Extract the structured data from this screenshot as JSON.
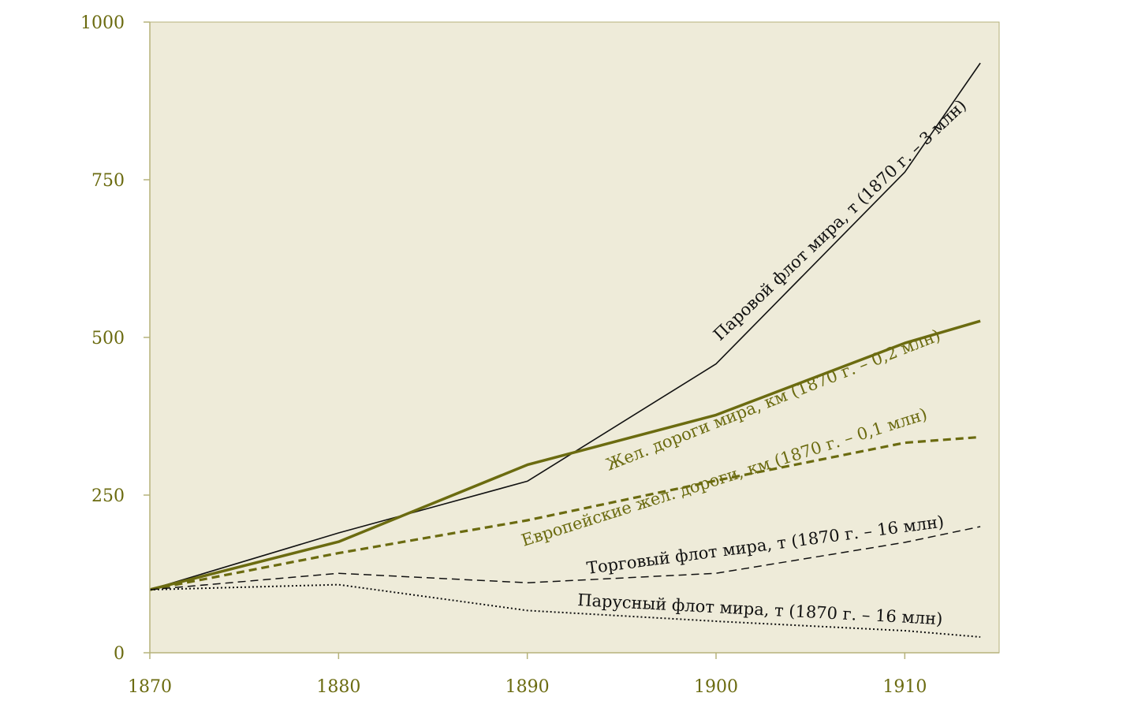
{
  "chart_data": {
    "type": "line",
    "title": "",
    "xlabel": "",
    "ylabel": "",
    "xlim": [
      1870,
      1915
    ],
    "ylim": [
      0,
      1000
    ],
    "x_ticks": [
      "1870",
      "1880",
      "1890",
      "1900",
      "1910"
    ],
    "y_ticks": [
      "0",
      "250",
      "500",
      "750",
      "1000"
    ],
    "grid": false,
    "colors": {
      "plot_bg": "#eeebd9",
      "olive": "#6b6b10",
      "black": "#111111",
      "axis": "#b5b27a"
    },
    "series": [
      {
        "name": "Паровой флот мира, т (1870 г. – 3 млн)",
        "color": "#111111",
        "style": "solid",
        "width": 1.6,
        "x": [
          1870,
          1880,
          1890,
          1900,
          1910,
          1914
        ],
        "y": [
          100,
          190,
          272,
          458,
          762,
          935
        ]
      },
      {
        "name": "Жел. дороги мира, км (1870 г. – 0,2 млн)",
        "color": "#6b6b10",
        "style": "solid",
        "width": 3.5,
        "x": [
          1870,
          1880,
          1890,
          1900,
          1910,
          1914
        ],
        "y": [
          100,
          176,
          298,
          377,
          491,
          526
        ]
      },
      {
        "name": "Европейские жел. дороги, км (1870 г. – 0,1 млн)",
        "color": "#6b6b10",
        "style": "dashed",
        "width": 3.2,
        "x": [
          1870,
          1880,
          1890,
          1900,
          1910,
          1914
        ],
        "y": [
          100,
          158,
          210,
          273,
          333,
          342
        ]
      },
      {
        "name": "Торговый флот мира, т (1870 г. – 16 млн)",
        "color": "#111111",
        "style": "dashed",
        "width": 1.5,
        "x": [
          1870,
          1880,
          1890,
          1900,
          1910,
          1914
        ],
        "y": [
          100,
          126,
          111,
          126,
          175,
          200
        ]
      },
      {
        "name": "Парусный флот мира, т (1870 г. – 16 млн)",
        "color": "#111111",
        "style": "dotted",
        "width": 2,
        "x": [
          1870,
          1880,
          1890,
          1900,
          1910,
          1914
        ],
        "y": [
          100,
          108,
          67,
          50,
          35,
          25
        ]
      }
    ]
  }
}
